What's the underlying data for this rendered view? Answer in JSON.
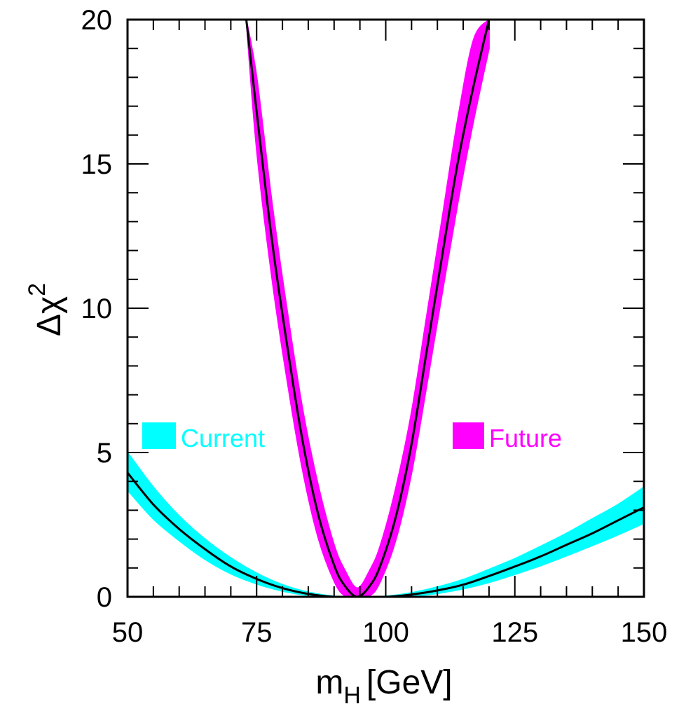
{
  "chart_data": {
    "type": "line",
    "xlabel": "m",
    "xlabel_sub": "H",
    "xlabel_unit": "[GeV]",
    "ylabel": "Δχ",
    "ylabel_sup": "2",
    "xlim": [
      50,
      150
    ],
    "ylim": [
      0,
      20
    ],
    "x_ticks": [
      50,
      75,
      100,
      125,
      150
    ],
    "x_tick_labels": [
      "50",
      "75",
      "100",
      "125",
      "150"
    ],
    "y_ticks": [
      0,
      5,
      10,
      15,
      20
    ],
    "y_tick_labels": [
      "0",
      "5",
      "10",
      "15",
      "20"
    ],
    "grid": false,
    "series": [
      {
        "name": "Current",
        "color": "#00ffff",
        "band": true,
        "minimum": 95,
        "x": [
          50,
          55,
          60,
          65,
          70,
          75,
          80,
          85,
          90,
          95,
          100,
          105,
          110,
          115,
          120,
          125,
          130,
          135,
          140,
          145,
          150
        ],
        "y": [
          4.3,
          3.2,
          2.35,
          1.65,
          1.05,
          0.62,
          0.3,
          0.1,
          0.0,
          0.0,
          0.0,
          0.08,
          0.22,
          0.42,
          0.72,
          1.05,
          1.4,
          1.8,
          2.2,
          2.65,
          3.1
        ],
        "y_low": [
          3.7,
          2.7,
          1.95,
          1.3,
          0.8,
          0.45,
          0.2,
          0.05,
          0.0,
          0.0,
          0.0,
          0.03,
          0.12,
          0.28,
          0.5,
          0.78,
          1.08,
          1.42,
          1.78,
          2.15,
          2.55
        ],
        "y_high": [
          5.0,
          3.8,
          2.8,
          2.0,
          1.35,
          0.82,
          0.42,
          0.16,
          0.02,
          0.0,
          0.02,
          0.14,
          0.34,
          0.6,
          0.95,
          1.32,
          1.75,
          2.2,
          2.7,
          3.2,
          3.8
        ]
      },
      {
        "name": "Future",
        "color": "#ff00ff",
        "band": true,
        "minimum": 94.5,
        "x": [
          73.0,
          75.0,
          78.0,
          81.0,
          84.0,
          87.0,
          90.0,
          92.0,
          94.5,
          97.0,
          99.0,
          102.0,
          105.0,
          108.0,
          111.0,
          114.0,
          117.0,
          120.0
        ],
        "y": [
          20.0,
          16.8,
          12.3,
          8.6,
          5.3,
          2.8,
          1.1,
          0.4,
          0.0,
          0.4,
          1.1,
          2.8,
          5.3,
          8.6,
          11.9,
          15.1,
          17.7,
          20.0
        ],
        "y_low": [
          20.0,
          15.5,
          11.0,
          7.4,
          4.3,
          2.0,
          0.55,
          0.05,
          0.0,
          0.05,
          0.55,
          2.0,
          4.3,
          7.4,
          10.6,
          13.7,
          16.5,
          19.0
        ],
        "y_high": [
          20.0,
          18.0,
          13.6,
          9.8,
          6.4,
          3.8,
          1.8,
          0.95,
          0.3,
          0.95,
          1.8,
          3.8,
          6.4,
          9.8,
          13.2,
          16.6,
          19.3,
          20.0
        ]
      }
    ],
    "legend": [
      {
        "label": "Current",
        "color": "#00ffff",
        "position": "left"
      },
      {
        "label": "Future",
        "color": "#ff00ff",
        "position": "right"
      }
    ],
    "central_line_color": "#000000"
  }
}
